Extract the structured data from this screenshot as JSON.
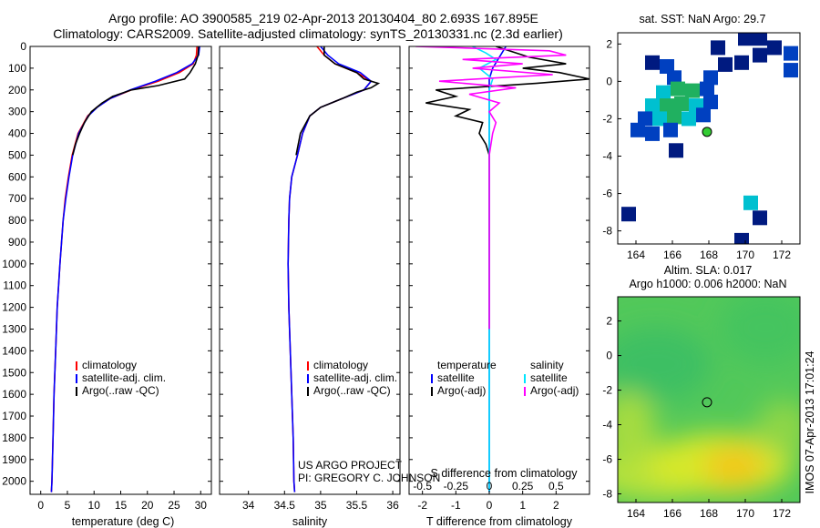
{
  "header": {
    "title_line1": "Argo profile: AO 3900585_219 02-Apr-2013 20130404_80 2.693S 167.895E",
    "title_line2": "Climatology: CARS2009. Satellite-adjusted climatology: synTS_20130331.nc (2.3d earlier)"
  },
  "colors": {
    "climatology": "#ff0000",
    "satellite": "#0000ff",
    "argo": "#000000",
    "sal_satellite": "#00e5ff",
    "sal_argo": "#ff00ff",
    "sst_dark": "#001a80",
    "sst_mid": "#0040c0",
    "sst_cyan": "#00c0d0",
    "sst_green": "#20b060"
  },
  "depth_ticks": [
    "0",
    "100",
    "200",
    "300",
    "400",
    "500",
    "600",
    "700",
    "800",
    "900",
    "1000",
    "1100",
    "1200",
    "1300",
    "1400",
    "1500",
    "1600",
    "1700",
    "1800",
    "1900",
    "2000"
  ],
  "chart_data": [
    {
      "type": "line",
      "name": "temperature-profile",
      "xlabel": "temperature (deg C)",
      "ylabel": "",
      "xlim": [
        -2,
        32
      ],
      "ylim": [
        2060,
        0
      ],
      "xticks": [
        "0",
        "5",
        "10",
        "15",
        "20",
        "25",
        "30"
      ],
      "legend": [
        "climatology",
        "satellite-adj. clim.",
        "Argo(..raw -QC)"
      ],
      "series": [
        {
          "name": "climatology",
          "depth": [
            0,
            40,
            80,
            120,
            160,
            200,
            240,
            280,
            320,
            400,
            500,
            600,
            700,
            800,
            1000,
            1200,
            1400,
            1600,
            1800,
            2000,
            2050
          ],
          "values": [
            29.3,
            29.2,
            28.6,
            26.0,
            22.0,
            17.0,
            13.0,
            10.5,
            8.8,
            7.0,
            5.9,
            5.2,
            4.6,
            4.2,
            3.6,
            3.1,
            2.8,
            2.5,
            2.3,
            2.1,
            2.0
          ]
        },
        {
          "name": "satellite-adj. clim.",
          "depth": [
            0,
            40,
            80,
            120,
            160,
            200,
            240,
            280,
            320,
            400,
            500,
            600,
            700,
            800,
            1000,
            1200,
            1400,
            1600,
            1800,
            2000,
            2050
          ],
          "values": [
            29.8,
            29.6,
            28.4,
            25.5,
            21.5,
            16.8,
            13.0,
            10.6,
            8.9,
            7.1,
            6.0,
            5.3,
            4.7,
            4.2,
            3.6,
            3.1,
            2.8,
            2.5,
            2.3,
            2.1,
            2.0
          ]
        },
        {
          "name": "Argo(..raw -QC)",
          "depth": [
            0,
            40,
            80,
            120,
            150,
            180,
            200,
            230,
            260,
            300,
            350,
            400,
            450,
            500
          ],
          "values": [
            29.6,
            29.5,
            29.0,
            28.0,
            27.0,
            22.0,
            17.0,
            13.5,
            11.5,
            9.5,
            8.2,
            7.3,
            6.5,
            6.0
          ]
        }
      ]
    },
    {
      "type": "line",
      "name": "salinity-profile",
      "xlabel": "salinity",
      "xlim": [
        33.6,
        36.1
      ],
      "ylim": [
        2060,
        0
      ],
      "xticks": [
        "34",
        "34.5",
        "35",
        "35.5",
        "36"
      ],
      "legend": [
        "climatology",
        "satellite-adj. clim.",
        "Argo(..raw -QC)"
      ],
      "annotation": [
        "US ARGO PROJECT",
        "PI: GREGORY C. JOHNSON"
      ],
      "series": [
        {
          "name": "climatology",
          "depth": [
            0,
            40,
            80,
            120,
            160,
            200,
            240,
            280,
            320,
            400,
            500,
            600,
            700,
            800,
            1000,
            1200,
            1400,
            1600,
            1800,
            2000,
            2050
          ],
          "values": [
            34.95,
            35.05,
            35.2,
            35.5,
            35.7,
            35.6,
            35.3,
            35.0,
            34.85,
            34.75,
            34.68,
            34.6,
            34.57,
            34.56,
            34.55,
            34.56,
            34.58,
            34.6,
            34.62,
            34.63,
            34.64
          ]
        },
        {
          "name": "satellite-adj. clim.",
          "depth": [
            0,
            40,
            80,
            120,
            160,
            200,
            240,
            280,
            320,
            400,
            500,
            600,
            700,
            800,
            1000,
            1200,
            1400,
            1600,
            1800,
            2000,
            2050
          ],
          "values": [
            35.0,
            35.1,
            35.25,
            35.55,
            35.7,
            35.6,
            35.3,
            35.0,
            34.85,
            34.75,
            34.68,
            34.6,
            34.57,
            34.56,
            34.55,
            34.56,
            34.58,
            34.6,
            34.62,
            34.63,
            34.64
          ]
        },
        {
          "name": "Argo(..raw -QC)",
          "depth": [
            0,
            40,
            80,
            120,
            150,
            170,
            190,
            210,
            240,
            280,
            320,
            400,
            500
          ],
          "values": [
            35.05,
            35.05,
            35.2,
            35.5,
            35.6,
            35.8,
            35.7,
            35.5,
            35.3,
            35.0,
            34.85,
            34.72,
            34.66
          ]
        }
      ]
    },
    {
      "type": "line",
      "name": "difference-profile",
      "xlabel": "T difference from climatology",
      "xlabel_top": "S difference from climatology",
      "xlim": [
        -2.4,
        3.0
      ],
      "ylim": [
        2060,
        0
      ],
      "xticks": [
        "-2",
        "-1",
        "0",
        "1",
        "2"
      ],
      "xticks_top": [
        "-0.5",
        "-0.25",
        "0",
        "0.25",
        "0.5"
      ],
      "legend_headers": [
        "temperature",
        "salinity"
      ],
      "legend": [
        "satellite",
        "Argo(-adj)",
        "satellite",
        "Argo(-adj)"
      ],
      "series": [
        {
          "name": "temperature satellite",
          "depth": [
            0,
            50,
            100,
            150,
            200,
            300,
            400,
            600,
            1000,
            1500,
            2050
          ],
          "values": [
            0.5,
            0.3,
            0.1,
            0.0,
            0.0,
            0.0,
            0.0,
            0.0,
            0.0,
            0.0,
            0.0
          ]
        },
        {
          "name": "temperature Argo(-adj)",
          "depth": [
            0,
            20,
            50,
            80,
            100,
            120,
            150,
            170,
            200,
            230,
            260,
            290,
            320,
            350,
            400,
            450,
            500,
            600,
            800,
            1000,
            1200,
            1300
          ],
          "values": [
            0.2,
            0.6,
            1.2,
            2.3,
            1.0,
            2.1,
            3.0,
            1.4,
            -1.6,
            -1.0,
            -1.9,
            -0.6,
            -1.0,
            -0.2,
            -0.3,
            -0.1,
            0.0,
            0.0,
            0.0,
            0.0,
            0.0,
            0.0
          ]
        },
        {
          "name": "salinity satellite",
          "depth": [
            0,
            30,
            60,
            100,
            150,
            200,
            300,
            500,
            1000,
            1500,
            2050
          ],
          "values": [
            -0.5,
            -0.1,
            0.2,
            -0.3,
            0.1,
            0.0,
            0.0,
            0.0,
            0.0,
            0.0,
            0.0
          ]
        },
        {
          "name": "salinity Argo(-adj)",
          "depth": [
            0,
            20,
            40,
            60,
            80,
            100,
            130,
            160,
            190,
            220,
            260,
            300,
            350,
            400,
            500,
            700,
            1000,
            1200,
            1300
          ],
          "values": [
            -2.2,
            1.8,
            2.3,
            -0.8,
            1.0,
            -0.5,
            1.9,
            -1.5,
            0.8,
            -0.6,
            0.3,
            0.0,
            0.2,
            0.1,
            0.0,
            0.0,
            0.0,
            0.0,
            0.0
          ]
        }
      ]
    },
    {
      "type": "heatmap",
      "name": "sst-map",
      "title": "sat. SST: NaN Argo: 29.7",
      "xlim": [
        163,
        173
      ],
      "ylim": [
        -8.7,
        2.6
      ],
      "xticks": [
        "164",
        "166",
        "168",
        "170",
        "172"
      ],
      "yticks": [
        "2",
        "0",
        "-2",
        "-4",
        "-6",
        "-8"
      ],
      "argo_position": [
        167.9,
        -2.7
      ],
      "cells": [
        {
          "lon": 170.0,
          "lat": 2.3,
          "level": "dark"
        },
        {
          "lon": 170.8,
          "lat": 2.3,
          "level": "dark"
        },
        {
          "lon": 171.6,
          "lat": 1.8,
          "level": "dark"
        },
        {
          "lon": 170.8,
          "lat": 1.4,
          "level": "dark"
        },
        {
          "lon": 169.8,
          "lat": 1.0,
          "level": "dark"
        },
        {
          "lon": 172.5,
          "lat": 1.5,
          "level": "mid"
        },
        {
          "lon": 172.5,
          "lat": 0.6,
          "level": "mid"
        },
        {
          "lon": 168.5,
          "lat": 1.8,
          "level": "dark"
        },
        {
          "lon": 168.9,
          "lat": 0.9,
          "level": "dark"
        },
        {
          "lon": 164.9,
          "lat": 1.0,
          "level": "dark"
        },
        {
          "lon": 165.7,
          "lat": 0.8,
          "level": "mid"
        },
        {
          "lon": 166.1,
          "lat": 0.2,
          "level": "mid"
        },
        {
          "lon": 168.1,
          "lat": 0.2,
          "level": "mid"
        },
        {
          "lon": 165.5,
          "lat": -0.6,
          "level": "cyan"
        },
        {
          "lon": 166.3,
          "lat": -0.4,
          "level": "green"
        },
        {
          "lon": 167.1,
          "lat": -0.5,
          "level": "green"
        },
        {
          "lon": 167.9,
          "lat": -0.4,
          "level": "mid"
        },
        {
          "lon": 164.9,
          "lat": -1.3,
          "level": "cyan"
        },
        {
          "lon": 165.7,
          "lat": -1.3,
          "level": "green"
        },
        {
          "lon": 166.5,
          "lat": -1.2,
          "level": "green"
        },
        {
          "lon": 167.3,
          "lat": -1.3,
          "level": "cyan"
        },
        {
          "lon": 168.1,
          "lat": -1.1,
          "level": "mid"
        },
        {
          "lon": 164.5,
          "lat": -2.0,
          "level": "mid"
        },
        {
          "lon": 165.3,
          "lat": -2.0,
          "level": "cyan"
        },
        {
          "lon": 166.1,
          "lat": -1.9,
          "level": "green"
        },
        {
          "lon": 166.9,
          "lat": -2.0,
          "level": "cyan"
        },
        {
          "lon": 167.7,
          "lat": -1.8,
          "level": "mid"
        },
        {
          "lon": 164.1,
          "lat": -2.6,
          "level": "mid"
        },
        {
          "lon": 164.9,
          "lat": -2.8,
          "level": "mid"
        },
        {
          "lon": 165.9,
          "lat": -2.6,
          "level": "mid"
        },
        {
          "lon": 166.2,
          "lat": -3.7,
          "level": "dark"
        },
        {
          "lon": 170.3,
          "lat": -6.5,
          "level": "cyan"
        },
        {
          "lon": 170.8,
          "lat": -7.3,
          "level": "dark"
        },
        {
          "lon": 163.6,
          "lat": -7.1,
          "level": "dark"
        },
        {
          "lon": 169.8,
          "lat": -8.5,
          "level": "dark"
        }
      ]
    },
    {
      "type": "heatmap",
      "name": "sla-map",
      "title": "Altim. SLA: 0.017",
      "subtitle": "Argo h1000: 0.006 h2000: NaN",
      "xlim": [
        163,
        173
      ],
      "ylim": [
        -8.5,
        3.4
      ],
      "xticks": [
        "164",
        "166",
        "168",
        "170",
        "172"
      ],
      "yticks": [
        "2",
        "0",
        "-2",
        "-4",
        "-6",
        "-8"
      ],
      "argo_position": [
        167.9,
        -2.7
      ],
      "side_label": "IMOS 07-Apr-2013 17:01:24"
    }
  ]
}
